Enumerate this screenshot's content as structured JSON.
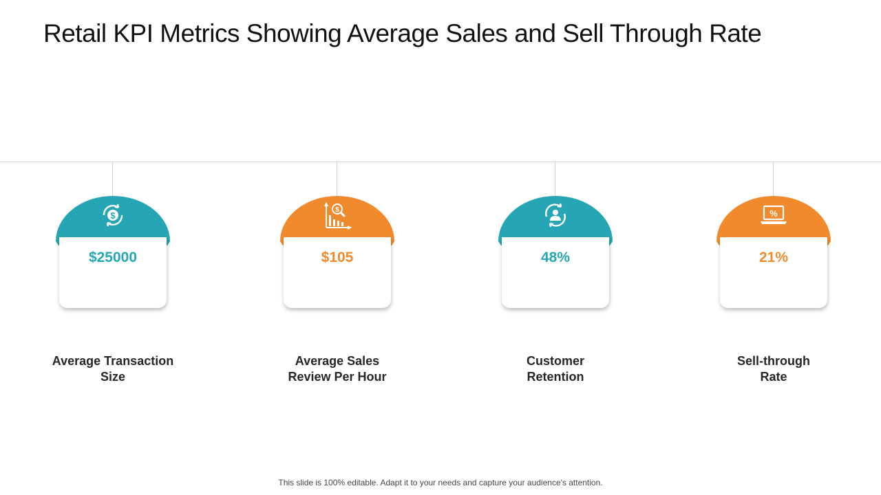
{
  "title": "Retail KPI Metrics Showing Average Sales and Sell Through Rate",
  "colors": {
    "teal": "#26a6b4",
    "orange": "#f08a2c"
  },
  "kpis": [
    {
      "value": "$25000",
      "label_line1": "Average Transaction",
      "label_line2": "Size",
      "color": "teal",
      "icon": "dollar-refresh-icon"
    },
    {
      "value": "$105",
      "label_line1": "Average Sales",
      "label_line2": "Review Per Hour",
      "color": "orange",
      "icon": "sales-chart-magnifier-icon"
    },
    {
      "value": "48%",
      "label_line1": "Customer",
      "label_line2": "Retention",
      "color": "teal",
      "icon": "customer-refresh-icon"
    },
    {
      "value": "21%",
      "label_line1": "Sell-through",
      "label_line2": "Rate",
      "color": "orange",
      "icon": "laptop-percent-icon"
    }
  ],
  "footer": "This slide is 100% editable. Adapt it to your needs and capture your audience's attention."
}
